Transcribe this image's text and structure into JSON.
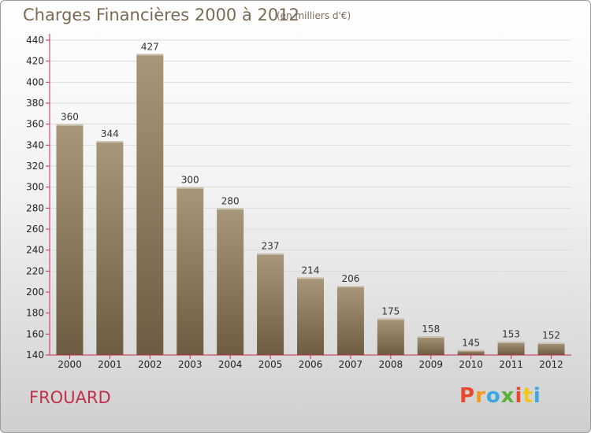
{
  "header": {
    "title": "Charges Financières 2000 à 2012",
    "subtitle": "(en milliers d'€)"
  },
  "footer": {
    "commune": "FROUARD",
    "logo": "Proxiti",
    "logo_colors": [
      "#e8492c",
      "#f39a1e",
      "#3aa9df",
      "#5ab337",
      "#e8492c",
      "#f3c61e",
      "#3aa9df"
    ]
  },
  "colors": {
    "bar_light": "#a8977a",
    "bar_dark": "#6e5c42",
    "axis": "#c0304a",
    "grid": "#dddddd"
  },
  "chart_data": {
    "type": "bar",
    "title": "Charges Financières 2000 à 2012",
    "subtitle": "(en milliers d'€)",
    "categories": [
      "2000",
      "2001",
      "2002",
      "2003",
      "2004",
      "2005",
      "2006",
      "2007",
      "2008",
      "2009",
      "2010",
      "2011",
      "2012"
    ],
    "values": [
      360,
      344,
      427,
      300,
      280,
      237,
      214,
      206,
      175,
      158,
      145,
      153,
      152
    ],
    "ylim": [
      140,
      440
    ],
    "yticks": [
      140,
      160,
      180,
      200,
      220,
      240,
      260,
      280,
      300,
      320,
      340,
      360,
      380,
      400,
      420,
      440
    ],
    "grid": true,
    "legend": "none"
  }
}
